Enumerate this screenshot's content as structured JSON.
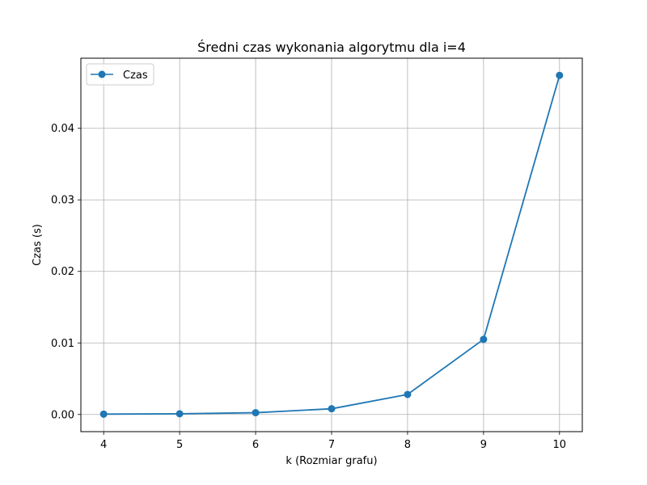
{
  "chart_data": {
    "type": "line",
    "title": "Średni czas wykonania algorytmu dla i=4",
    "xlabel": "k (Rozmiar grafu)",
    "ylabel": "Czas (s)",
    "x": [
      4,
      5,
      6,
      7,
      8,
      9,
      10
    ],
    "series": [
      {
        "name": "Czas",
        "values": [
          5e-05,
          0.0001,
          0.00025,
          0.0008,
          0.0028,
          0.0105,
          0.0474
        ],
        "color": "#1f77b4",
        "marker": "circle"
      }
    ],
    "xticks": [
      "4",
      "5",
      "6",
      "7",
      "8",
      "9",
      "10"
    ],
    "xtick_values": [
      4,
      5,
      6,
      7,
      8,
      9,
      10
    ],
    "yticks": [
      "0.00",
      "0.01",
      "0.02",
      "0.03",
      "0.04"
    ],
    "ytick_values": [
      0,
      0.01,
      0.02,
      0.03,
      0.04
    ],
    "xlim": [
      3.7,
      10.3
    ],
    "ylim": [
      -0.0024,
      0.0498
    ],
    "grid": true,
    "legend_position": "top-left"
  }
}
